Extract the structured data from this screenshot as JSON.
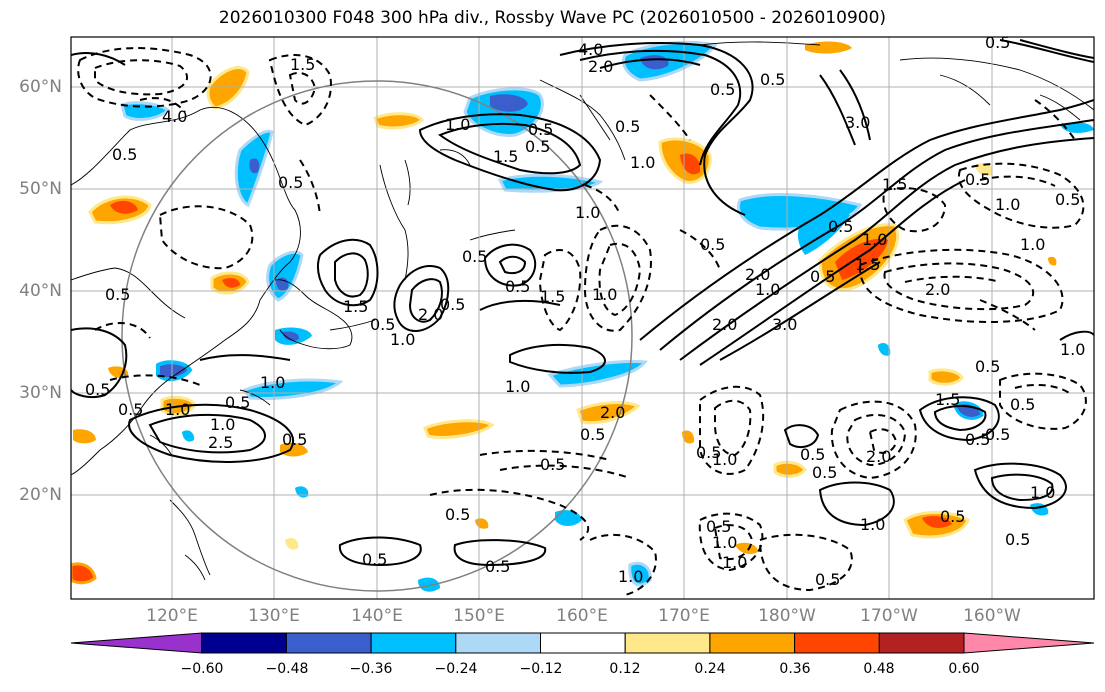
{
  "title": "2026010300 F048 300 hPa div., Rossby Wave PC (2026010500 - 2026010900)",
  "lat_labels": [
    "60°N",
    "50°N",
    "40°N",
    "30°N",
    "20°N"
  ],
  "lon_labels": [
    "120°E",
    "130°E",
    "140°E",
    "150°E",
    "160°E",
    "170°E",
    "180°W",
    "170°W",
    "160°W"
  ],
  "colorbar": {
    "colors": [
      "#9932cc",
      "#000090",
      "#3a5fcd",
      "#00bfff",
      "#add8f6",
      "#ffffff",
      "#ffe88a",
      "#ffa500",
      "#ff4500",
      "#b22222",
      "#ff88aa"
    ],
    "labels": [
      "−0.60",
      "−0.48",
      "−0.36",
      "−0.24",
      "−0.12",
      "0.12",
      "0.24",
      "0.36",
      "0.48",
      "0.60"
    ]
  },
  "contour_labels": [
    "4.0",
    "1.5",
    "0.5",
    "0.5",
    "1.0",
    "1.0",
    "0.5",
    "1.5",
    "0.5",
    "4.0",
    "2.0",
    "0.5",
    "1.0",
    "0.5",
    "3.0",
    "2.0",
    "1.0",
    "0.5",
    "1.5",
    "0.5",
    "1.0",
    "0.5",
    "0.5",
    "1.0",
    "1.5",
    "1.0",
    "0.5",
    "0.5",
    "2.0",
    "3.0",
    "2.0",
    "1.5",
    "1.0",
    "0.5",
    "1.5",
    "2.0",
    "0.5",
    "1.0",
    "0.5",
    "0.5",
    "2.5",
    "0.5",
    "1.0",
    "0.5",
    "1.0",
    "0.5",
    "0.5",
    "0.5",
    "1.0",
    "1.0",
    "0.5",
    "2.0",
    "0.5",
    "1.0",
    "0.5",
    "0.5",
    "1.0",
    "0.5",
    "1.0",
    "0.5",
    "1.0",
    "0.5",
    "0.5",
    "0.5",
    "1.0",
    "0.5",
    "0.5",
    "1.0",
    "0.5",
    "0.5",
    "1.5",
    "0.5",
    "1.0",
    "0.5",
    "2.0",
    "0.5",
    "0.5"
  ]
}
